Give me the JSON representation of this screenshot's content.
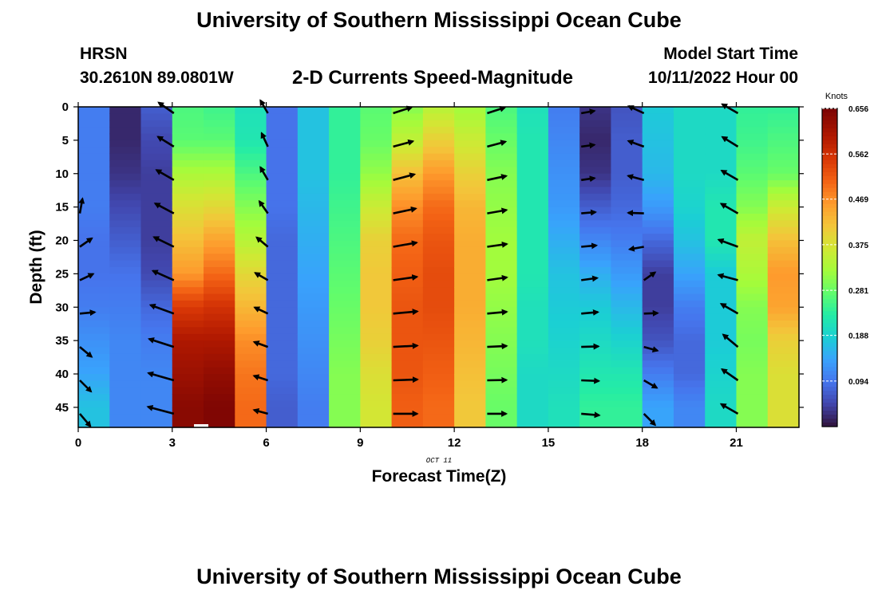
{
  "header": {
    "title": "University of Southern Mississippi Ocean Cube",
    "station_name": "HRSN",
    "station_coords": "30.2610N  89.0801W",
    "subtitle": "2-D Currents Speed-Magnitude",
    "model_start_label": "Model Start Time",
    "model_start_value": "10/11/2022 Hour 00"
  },
  "footer": {
    "title": "University of Southern Mississippi Ocean Cube"
  },
  "chart_data": {
    "type": "heatmap",
    "title": "2-D Currents Speed-Magnitude",
    "xlabel": "Forecast Time(Z)",
    "ylabel": "Depth (ft)",
    "x_date_label": "OCT 11",
    "xlim": [
      0,
      23
    ],
    "ylim": [
      0,
      48
    ],
    "y_inverted": true,
    "x_ticks": [
      0,
      3,
      6,
      9,
      12,
      15,
      18,
      21
    ],
    "y_ticks": [
      0,
      5,
      10,
      15,
      20,
      25,
      30,
      35,
      40,
      45
    ],
    "colorbar": {
      "unit_label": "Knots",
      "min": 0,
      "max": 0.656,
      "tick_labels": [
        "0.656",
        "0.562",
        "0.469",
        "0.375",
        "0.281",
        "0.188",
        "0.094"
      ],
      "tick_values": [
        0.656,
        0.562,
        0.469,
        0.375,
        0.281,
        0.188,
        0.094
      ]
    },
    "depths_ft": [
      0,
      5,
      10,
      15,
      20,
      25,
      30,
      35,
      40,
      45
    ],
    "speed_columns": [
      {
        "hour": 0,
        "speeds": [
          0.1,
          0.1,
          0.1,
          0.1,
          0.09,
          0.09,
          0.1,
          0.12,
          0.14,
          0.17
        ]
      },
      {
        "hour": 1,
        "speeds": [
          0.02,
          0.02,
          0.03,
          0.05,
          0.07,
          0.09,
          0.1,
          0.11,
          0.11,
          0.11
        ]
      },
      {
        "hour": 2,
        "speeds": [
          0.07,
          0.05,
          0.04,
          0.04,
          0.04,
          0.05,
          0.08,
          0.1,
          0.11,
          0.11
        ]
      },
      {
        "hour": 3,
        "speeds": [
          0.26,
          0.27,
          0.33,
          0.38,
          0.42,
          0.46,
          0.55,
          0.6,
          0.62,
          0.64
        ]
      },
      {
        "hour": 4,
        "speeds": [
          0.25,
          0.27,
          0.33,
          0.39,
          0.45,
          0.5,
          0.56,
          0.6,
          0.63,
          0.65
        ]
      },
      {
        "hour": 5,
        "speeds": [
          0.21,
          0.22,
          0.26,
          0.3,
          0.34,
          0.39,
          0.43,
          0.47,
          0.49,
          0.5
        ]
      },
      {
        "hour": 6,
        "speeds": [
          0.09,
          0.09,
          0.09,
          0.09,
          0.08,
          0.08,
          0.08,
          0.08,
          0.08,
          0.07
        ]
      },
      {
        "hour": 7,
        "speeds": [
          0.17,
          0.17,
          0.17,
          0.16,
          0.15,
          0.14,
          0.13,
          0.12,
          0.11,
          0.1
        ]
      },
      {
        "hour": 8,
        "speeds": [
          0.24,
          0.24,
          0.24,
          0.25,
          0.26,
          0.27,
          0.28,
          0.29,
          0.3,
          0.3
        ]
      },
      {
        "hour": 9,
        "speeds": [
          0.27,
          0.28,
          0.31,
          0.36,
          0.4,
          0.41,
          0.41,
          0.4,
          0.38,
          0.37
        ]
      },
      {
        "hour": 10,
        "speeds": [
          0.3,
          0.35,
          0.42,
          0.47,
          0.5,
          0.51,
          0.52,
          0.52,
          0.52,
          0.51
        ]
      },
      {
        "hour": 11,
        "speeds": [
          0.34,
          0.4,
          0.46,
          0.5,
          0.52,
          0.53,
          0.53,
          0.52,
          0.51,
          0.5
        ]
      },
      {
        "hour": 12,
        "speeds": [
          0.32,
          0.36,
          0.4,
          0.43,
          0.44,
          0.44,
          0.44,
          0.43,
          0.42,
          0.41
        ]
      },
      {
        "hour": 13,
        "speeds": [
          0.26,
          0.28,
          0.3,
          0.31,
          0.32,
          0.32,
          0.31,
          0.3,
          0.29,
          0.28
        ]
      },
      {
        "hour": 14,
        "speeds": [
          0.21,
          0.22,
          0.22,
          0.22,
          0.22,
          0.22,
          0.21,
          0.21,
          0.2,
          0.2
        ]
      },
      {
        "hour": 15,
        "speeds": [
          0.1,
          0.11,
          0.12,
          0.13,
          0.15,
          0.17,
          0.18,
          0.19,
          0.2,
          0.21
        ]
      },
      {
        "hour": 16,
        "speeds": [
          0.03,
          0.02,
          0.03,
          0.07,
          0.11,
          0.15,
          0.18,
          0.2,
          0.22,
          0.24
        ]
      },
      {
        "hour": 17,
        "speeds": [
          0.06,
          0.07,
          0.07,
          0.08,
          0.1,
          0.13,
          0.16,
          0.19,
          0.22,
          0.24
        ]
      },
      {
        "hour": 18,
        "speeds": [
          0.18,
          0.17,
          0.16,
          0.13,
          0.08,
          0.04,
          0.04,
          0.06,
          0.1,
          0.14
        ]
      },
      {
        "hour": 19,
        "speeds": [
          0.2,
          0.2,
          0.2,
          0.19,
          0.17,
          0.14,
          0.1,
          0.08,
          0.08,
          0.11
        ]
      },
      {
        "hour": 20,
        "speeds": [
          0.2,
          0.2,
          0.2,
          0.22,
          0.22,
          0.18,
          0.18,
          0.18,
          0.19,
          0.2
        ]
      },
      {
        "hour": 21,
        "speeds": [
          0.24,
          0.25,
          0.27,
          0.3,
          0.35,
          0.33,
          0.3,
          0.29,
          0.3,
          0.3
        ]
      },
      {
        "hour": 22,
        "speeds": [
          0.24,
          0.26,
          0.28,
          0.36,
          0.42,
          0.46,
          0.45,
          0.4,
          0.38,
          0.38
        ]
      }
    ],
    "vectors": [
      {
        "hour": 0,
        "speeds": [
          null,
          null,
          null,
          0.1,
          0.09,
          0.09,
          0.1,
          0.12,
          0.14,
          0.17
        ],
        "dirs": [
          null,
          null,
          null,
          80,
          35,
          25,
          5,
          -40,
          -45,
          -50
        ]
      },
      {
        "hour": 3,
        "speeds": [
          0.26,
          0.27,
          0.33,
          0.38,
          0.42,
          0.46,
          0.55,
          0.6,
          0.62,
          0.64
        ],
        "dirs": [
          145,
          148,
          150,
          152,
          154,
          156,
          160,
          162,
          164,
          165
        ]
      },
      {
        "hour": 6,
        "speeds": [
          0.09,
          0.09,
          0.09,
          0.09,
          0.08,
          0.08,
          0.08,
          0.08,
          0.08,
          0.07
        ],
        "dirs": [
          120,
          115,
          120,
          125,
          140,
          150,
          155,
          160,
          162,
          165
        ]
      },
      {
        "hour": 10,
        "speeds": [
          0.3,
          0.35,
          0.42,
          0.47,
          0.5,
          0.51,
          0.52,
          0.52,
          0.52,
          0.51
        ],
        "dirs": [
          18,
          15,
          15,
          12,
          10,
          8,
          5,
          3,
          2,
          0
        ]
      },
      {
        "hour": 13,
        "speeds": [
          0.26,
          0.28,
          0.3,
          0.31,
          0.32,
          0.32,
          0.31,
          0.3,
          0.29,
          0.28
        ],
        "dirs": [
          18,
          15,
          12,
          10,
          8,
          8,
          5,
          3,
          1,
          0
        ]
      },
      {
        "hour": 16,
        "speeds": [
          0.03,
          0.02,
          0.03,
          0.07,
          0.11,
          0.15,
          0.18,
          0.2,
          0.22,
          0.24
        ],
        "dirs": [
          10,
          8,
          8,
          5,
          5,
          8,
          5,
          2,
          -2,
          -5
        ]
      },
      {
        "hour": 18,
        "speeds": [
          0.18,
          0.17,
          0.16,
          0.13,
          0.08,
          0.04,
          0.04,
          0.06,
          0.1,
          0.14
        ],
        "dirs": [
          155,
          160,
          165,
          178,
          190,
          35,
          2,
          -15,
          -30,
          -45
        ]
      },
      {
        "hour": 21,
        "speeds": [
          0.24,
          0.25,
          0.27,
          0.3,
          0.35,
          0.33,
          0.3,
          0.29,
          0.3,
          0.3
        ],
        "dirs": [
          150,
          148,
          150,
          150,
          160,
          165,
          150,
          140,
          145,
          150
        ]
      }
    ],
    "calm_marker": {
      "hour": 4,
      "depth": 48
    }
  }
}
